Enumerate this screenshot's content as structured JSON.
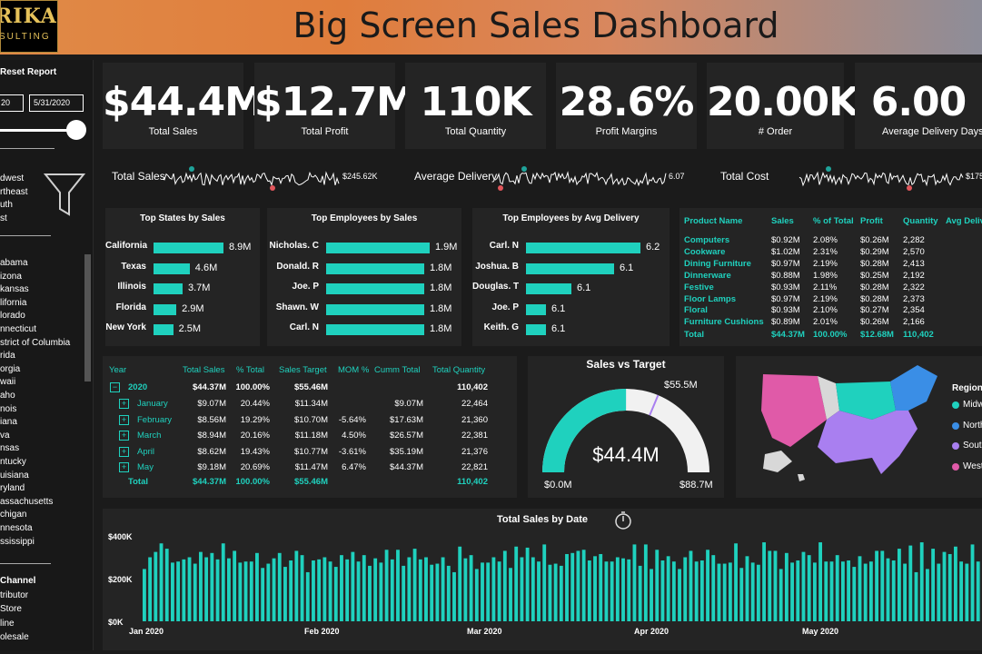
{
  "header": {
    "title": "Big Screen Sales Dashboard",
    "logo_line1": "RIKAN",
    "logo_line2": "SULTING"
  },
  "sidebar": {
    "reset_label": "Reset Report",
    "date_start": "20",
    "date_end": "5/31/2020",
    "slider_value_pct": 100,
    "regions": [
      "dwest",
      "rtheast",
      "uth",
      "st"
    ],
    "states": [
      "abama",
      "izona",
      "kansas",
      "lifornia",
      "lorado",
      "nnecticut",
      "strict of Columbia",
      "rida",
      "orgia",
      "waii",
      "aho",
      "nois",
      "iana",
      "va",
      "nsas",
      "ntucky",
      "uisiana",
      "ryland",
      "assachusetts",
      "chigan",
      "nnesota",
      "ssissippi"
    ],
    "channel_title": "Channel",
    "channels": [
      "tributor",
      "Store",
      "line",
      "olesale"
    ]
  },
  "kpis": [
    {
      "value": "$44.4M",
      "label": "Total Sales"
    },
    {
      "value": "$12.7M",
      "label": "Total Profit"
    },
    {
      "value": "110K",
      "label": "Total Quantity"
    },
    {
      "value": "28.6%",
      "label": "Profit Margins"
    },
    {
      "value": "20.00K",
      "label": "# Order"
    },
    {
      "value": "6.00",
      "label": "Average Delivery Days"
    }
  ],
  "sparklines": [
    {
      "label": "Total Sales",
      "value": "$245.62K"
    },
    {
      "label": "Average Delivery",
      "value": "6.07"
    },
    {
      "label": "Total Cost",
      "value": "$175"
    }
  ],
  "top_states": {
    "title": "Top States by Sales",
    "items": [
      {
        "name": "California",
        "value": 8.9,
        "label": "8.9M"
      },
      {
        "name": "Texas",
        "value": 4.6,
        "label": "4.6M"
      },
      {
        "name": "Illinois",
        "value": 3.7,
        "label": "3.7M"
      },
      {
        "name": "Florida",
        "value": 2.9,
        "label": "2.9M"
      },
      {
        "name": "New York",
        "value": 2.5,
        "label": "2.5M"
      }
    ]
  },
  "top_employees_sales": {
    "title": "Top Employees by Sales",
    "items": [
      {
        "name": "Nicholas. C",
        "value": 1.9,
        "label": "1.9M"
      },
      {
        "name": "Donald. R",
        "value": 1.8,
        "label": "1.8M"
      },
      {
        "name": "Joe. P",
        "value": 1.8,
        "label": "1.8M"
      },
      {
        "name": "Shawn. W",
        "value": 1.8,
        "label": "1.8M"
      },
      {
        "name": "Carl. N",
        "value": 1.8,
        "label": "1.8M"
      }
    ]
  },
  "top_employees_delivery": {
    "title": "Top Employees by Avg Delivery",
    "items": [
      {
        "name": "Carl. N",
        "value": 6.2,
        "label": "6.2"
      },
      {
        "name": "Joshua. B",
        "value": 6.1,
        "label": "6.1"
      },
      {
        "name": "Douglas. T",
        "value": 6.1,
        "label": "6.1"
      },
      {
        "name": "Joe. P",
        "value": 6.1,
        "label": "6.1"
      },
      {
        "name": "Keith. G",
        "value": 6.1,
        "label": "6.1"
      }
    ]
  },
  "product_table": {
    "headers": [
      "Product Name",
      "Sales",
      "% of Total",
      "Profit",
      "Quantity",
      "Avg Deliv"
    ],
    "rows": [
      [
        "Computers",
        "$0.92M",
        "2.08%",
        "$0.26M",
        "2,282"
      ],
      [
        "Cookware",
        "$1.02M",
        "2.31%",
        "$0.29M",
        "2,570"
      ],
      [
        "Dining Furniture",
        "$0.97M",
        "2.19%",
        "$0.28M",
        "2,413"
      ],
      [
        "Dinnerware",
        "$0.88M",
        "1.98%",
        "$0.25M",
        "2,192"
      ],
      [
        "Festive",
        "$0.93M",
        "2.11%",
        "$0.28M",
        "2,322"
      ],
      [
        "Floor Lamps",
        "$0.97M",
        "2.19%",
        "$0.28M",
        "2,373"
      ],
      [
        "Floral",
        "$0.93M",
        "2.10%",
        "$0.27M",
        "2,354"
      ],
      [
        "Furniture Cushions",
        "$0.89M",
        "2.01%",
        "$0.26M",
        "2,166"
      ]
    ],
    "total": [
      "Total",
      "$44.37M",
      "100.00%",
      "$12.68M",
      "110,402"
    ]
  },
  "matrix": {
    "headers": [
      "Year",
      "Total Sales",
      "% Total",
      "Sales Target",
      "MOM %",
      "Cumm Total",
      "Total Quantity"
    ],
    "year_row": [
      "2020",
      "$44.37M",
      "100.00%",
      "$55.46M",
      "",
      "",
      "110,402"
    ],
    "rows": [
      [
        "January",
        "$9.07M",
        "20.44%",
        "$11.34M",
        "",
        "$9.07M",
        "22,464"
      ],
      [
        "February",
        "$8.56M",
        "19.29%",
        "$10.70M",
        "-5.64%",
        "$17.63M",
        "21,360"
      ],
      [
        "March",
        "$8.94M",
        "20.16%",
        "$11.18M",
        "4.50%",
        "$26.57M",
        "22,381"
      ],
      [
        "April",
        "$8.62M",
        "19.43%",
        "$10.77M",
        "-3.61%",
        "$35.19M",
        "21,376"
      ],
      [
        "May",
        "$9.18M",
        "20.69%",
        "$11.47M",
        "6.47%",
        "$44.37M",
        "22,821"
      ]
    ],
    "total": [
      "Total",
      "$44.37M",
      "100.00%",
      "$55.46M",
      "",
      "",
      "110,402"
    ]
  },
  "gauge": {
    "title": "Sales vs Target",
    "value_label": "$44.4M",
    "min_label": "$0.0M",
    "max_label": "$88.7M",
    "target_label": "$55.5M",
    "value": 44.4,
    "min": 0,
    "max": 88.7,
    "target": 55.5
  },
  "map": {
    "legend_title": "Region",
    "legend": [
      {
        "name": "Midw",
        "color": "#1fd1be"
      },
      {
        "name": "North",
        "color": "#3a8ee6"
      },
      {
        "name": "South",
        "color": "#a97ff0"
      },
      {
        "name": "West",
        "color": "#e05aa8"
      }
    ]
  },
  "chart_data": {
    "type": "bar",
    "title": "Total Sales by Date",
    "ytick_labels": [
      "$400K",
      "$200K",
      "$0K"
    ],
    "ylim": [
      0,
      400
    ],
    "xtick_labels": [
      "Jan 2020",
      "Feb 2020",
      "Mar 2020",
      "Apr 2020",
      "May 2020"
    ],
    "values": [
      245,
      300,
      325,
      365,
      340,
      275,
      280,
      290,
      300,
      270,
      325,
      300,
      320,
      290,
      365,
      295,
      330,
      275,
      280,
      280,
      320,
      250,
      270,
      295,
      320,
      255,
      285,
      330,
      310,
      230,
      285,
      290,
      300,
      280,
      255,
      310,
      290,
      325,
      280,
      310,
      260,
      295,
      275,
      335,
      290,
      335,
      260,
      300,
      340,
      290,
      300,
      265,
      270,
      300,
      260,
      230,
      350,
      295,
      310,
      245,
      275,
      275,
      300,
      280,
      330,
      250,
      350,
      300,
      345,
      300,
      280,
      360,
      265,
      270,
      260,
      315,
      320,
      330,
      335,
      285,
      305,
      315,
      280,
      280,
      300,
      295,
      290,
      360,
      260,
      360,
      245,
      335,
      285,
      305,
      280,
      245,
      300,
      330,
      280,
      285,
      335,
      310,
      270,
      270,
      275,
      365,
      250,
      305,
      275,
      265,
      370,
      330,
      330,
      245,
      320,
      275,
      285,
      325,
      310,
      275,
      370,
      280,
      280,
      310,
      280,
      285,
      255,
      305,
      270,
      280,
      330,
      330,
      295,
      285,
      340,
      270,
      355,
      230,
      370,
      245,
      340,
      270,
      325,
      315,
      350,
      280,
      270,
      360,
      280
    ]
  },
  "colors": {
    "accent": "#1fd1be",
    "north": "#3a8ee6",
    "south": "#a97ff0",
    "west": "#e05aa8",
    "panel": "#242424",
    "marker_teal": "#1fa39a",
    "marker_red": "#e0565b"
  }
}
